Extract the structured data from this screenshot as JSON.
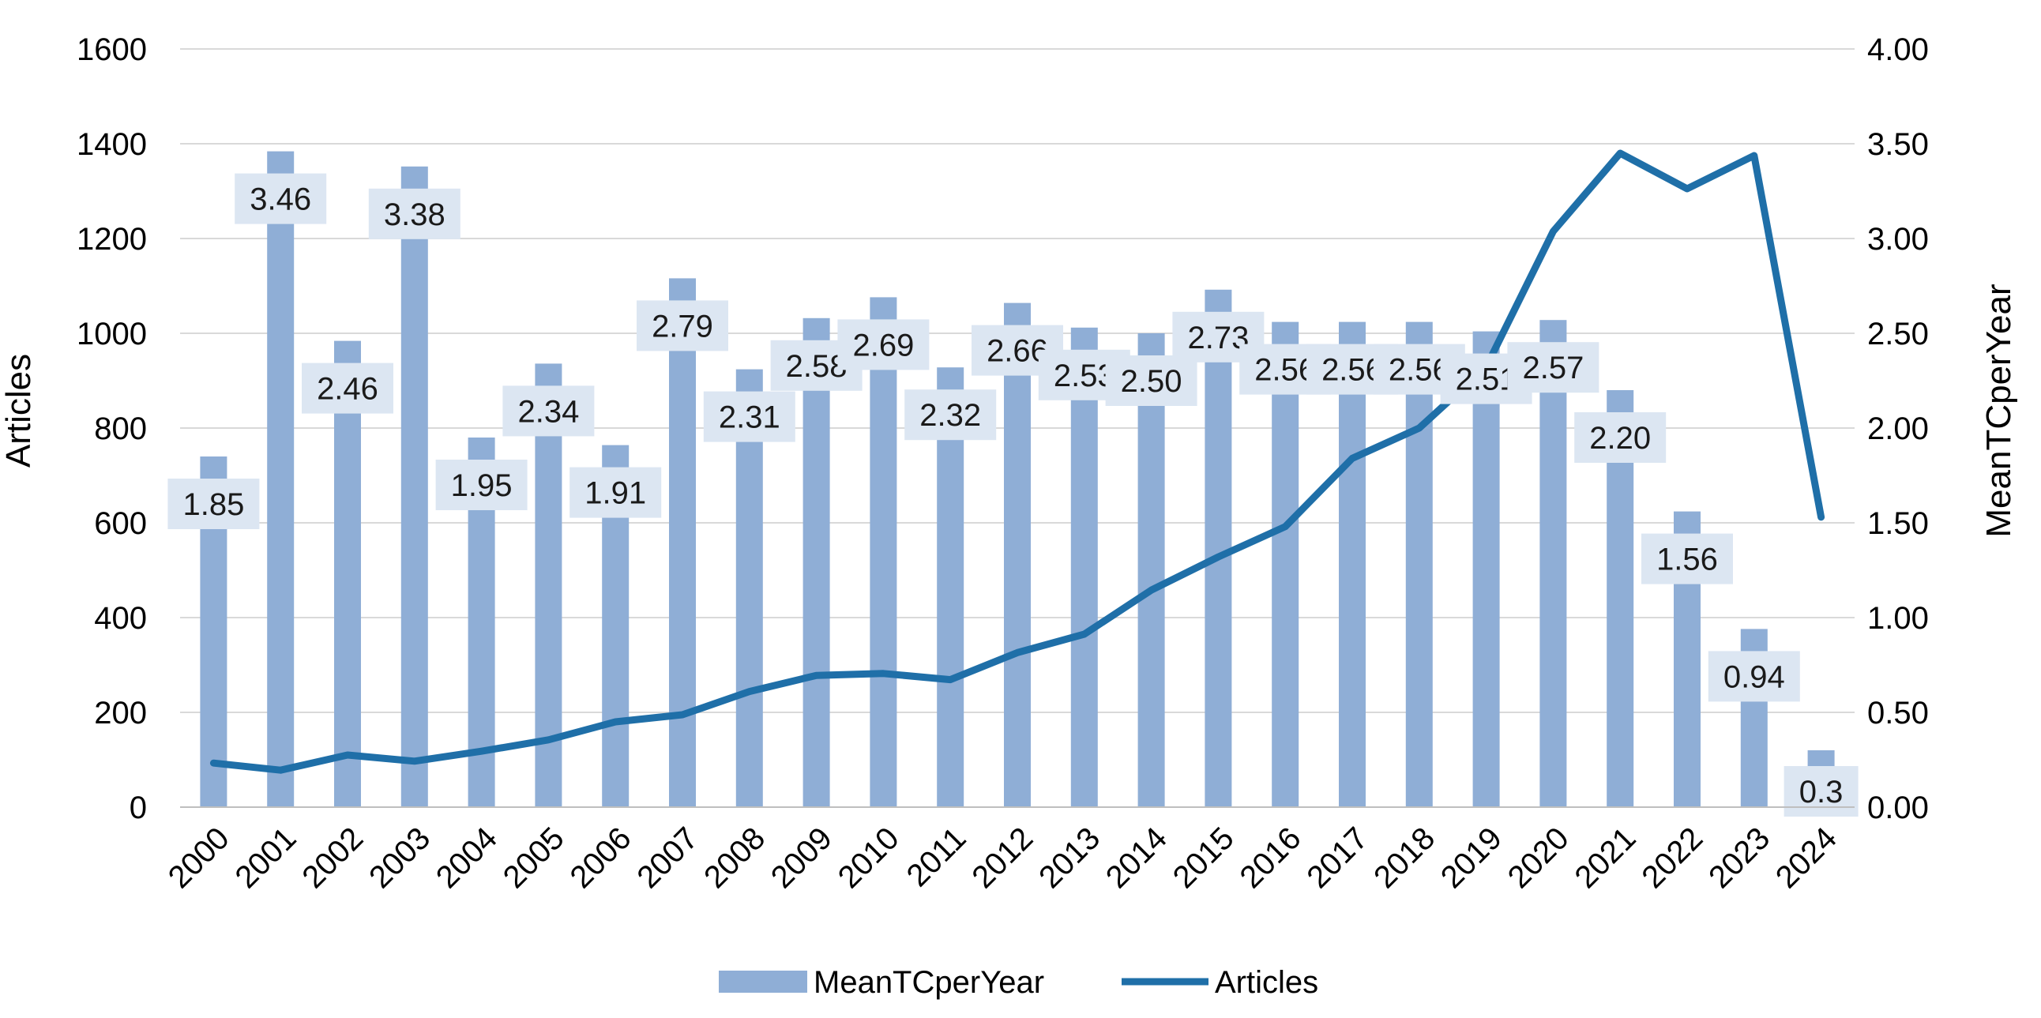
{
  "chart_data": {
    "type": "bar",
    "title": "",
    "categories": [
      "2000",
      "2001",
      "2002",
      "2003",
      "2004",
      "2005",
      "2006",
      "2007",
      "2008",
      "2009",
      "2010",
      "2011",
      "2012",
      "2013",
      "2014",
      "2015",
      "2016",
      "2017",
      "2018",
      "2019",
      "2020",
      "2021",
      "2022",
      "2023",
      "2024"
    ],
    "series": [
      {
        "name": "MeanTCperYear",
        "type": "bar",
        "axis": "right",
        "color": "#8faed6",
        "values": [
          1.85,
          3.46,
          2.46,
          3.38,
          1.95,
          2.34,
          1.91,
          2.79,
          2.31,
          2.58,
          2.69,
          2.32,
          2.66,
          2.53,
          2.5,
          2.73,
          2.56,
          2.56,
          2.56,
          2.51,
          2.57,
          2.2,
          1.56,
          0.94,
          0.3
        ],
        "labels": [
          "1.85",
          "3.46",
          "2.46",
          "3.38",
          "1.95",
          "2.34",
          "1.91",
          "2.79",
          "2.31",
          "2.58",
          "2.69",
          "2.32",
          "2.66",
          "2.53",
          "2.50",
          "2.73",
          "2.56",
          "2.56",
          "2.56",
          "2.51",
          "2.57",
          "2.20",
          "1.56",
          "0.94",
          "0.3"
        ]
      },
      {
        "name": "Articles",
        "type": "line",
        "axis": "left",
        "color": "#1f6fa8",
        "values": [
          93,
          78,
          110,
          97,
          118,
          142,
          180,
          195,
          244,
          278,
          282,
          269,
          326,
          365,
          458,
          528,
          592,
          736,
          800,
          929,
          1215,
          1380,
          1305,
          1375,
          612
        ]
      }
    ],
    "ylabel": "Articles",
    "y2label": "MeanTCperYear",
    "ylim": [
      0,
      1600
    ],
    "y2lim": [
      0,
      4
    ],
    "yticks": [
      "0",
      "200",
      "400",
      "600",
      "800",
      "1000",
      "1200",
      "1400",
      "1600"
    ],
    "y2ticks": [
      "0.00",
      "0.50",
      "1.00",
      "1.50",
      "2.00",
      "2.50",
      "3.00",
      "3.50",
      "4.00"
    ],
    "grid": true,
    "legend": "bottom-center"
  }
}
